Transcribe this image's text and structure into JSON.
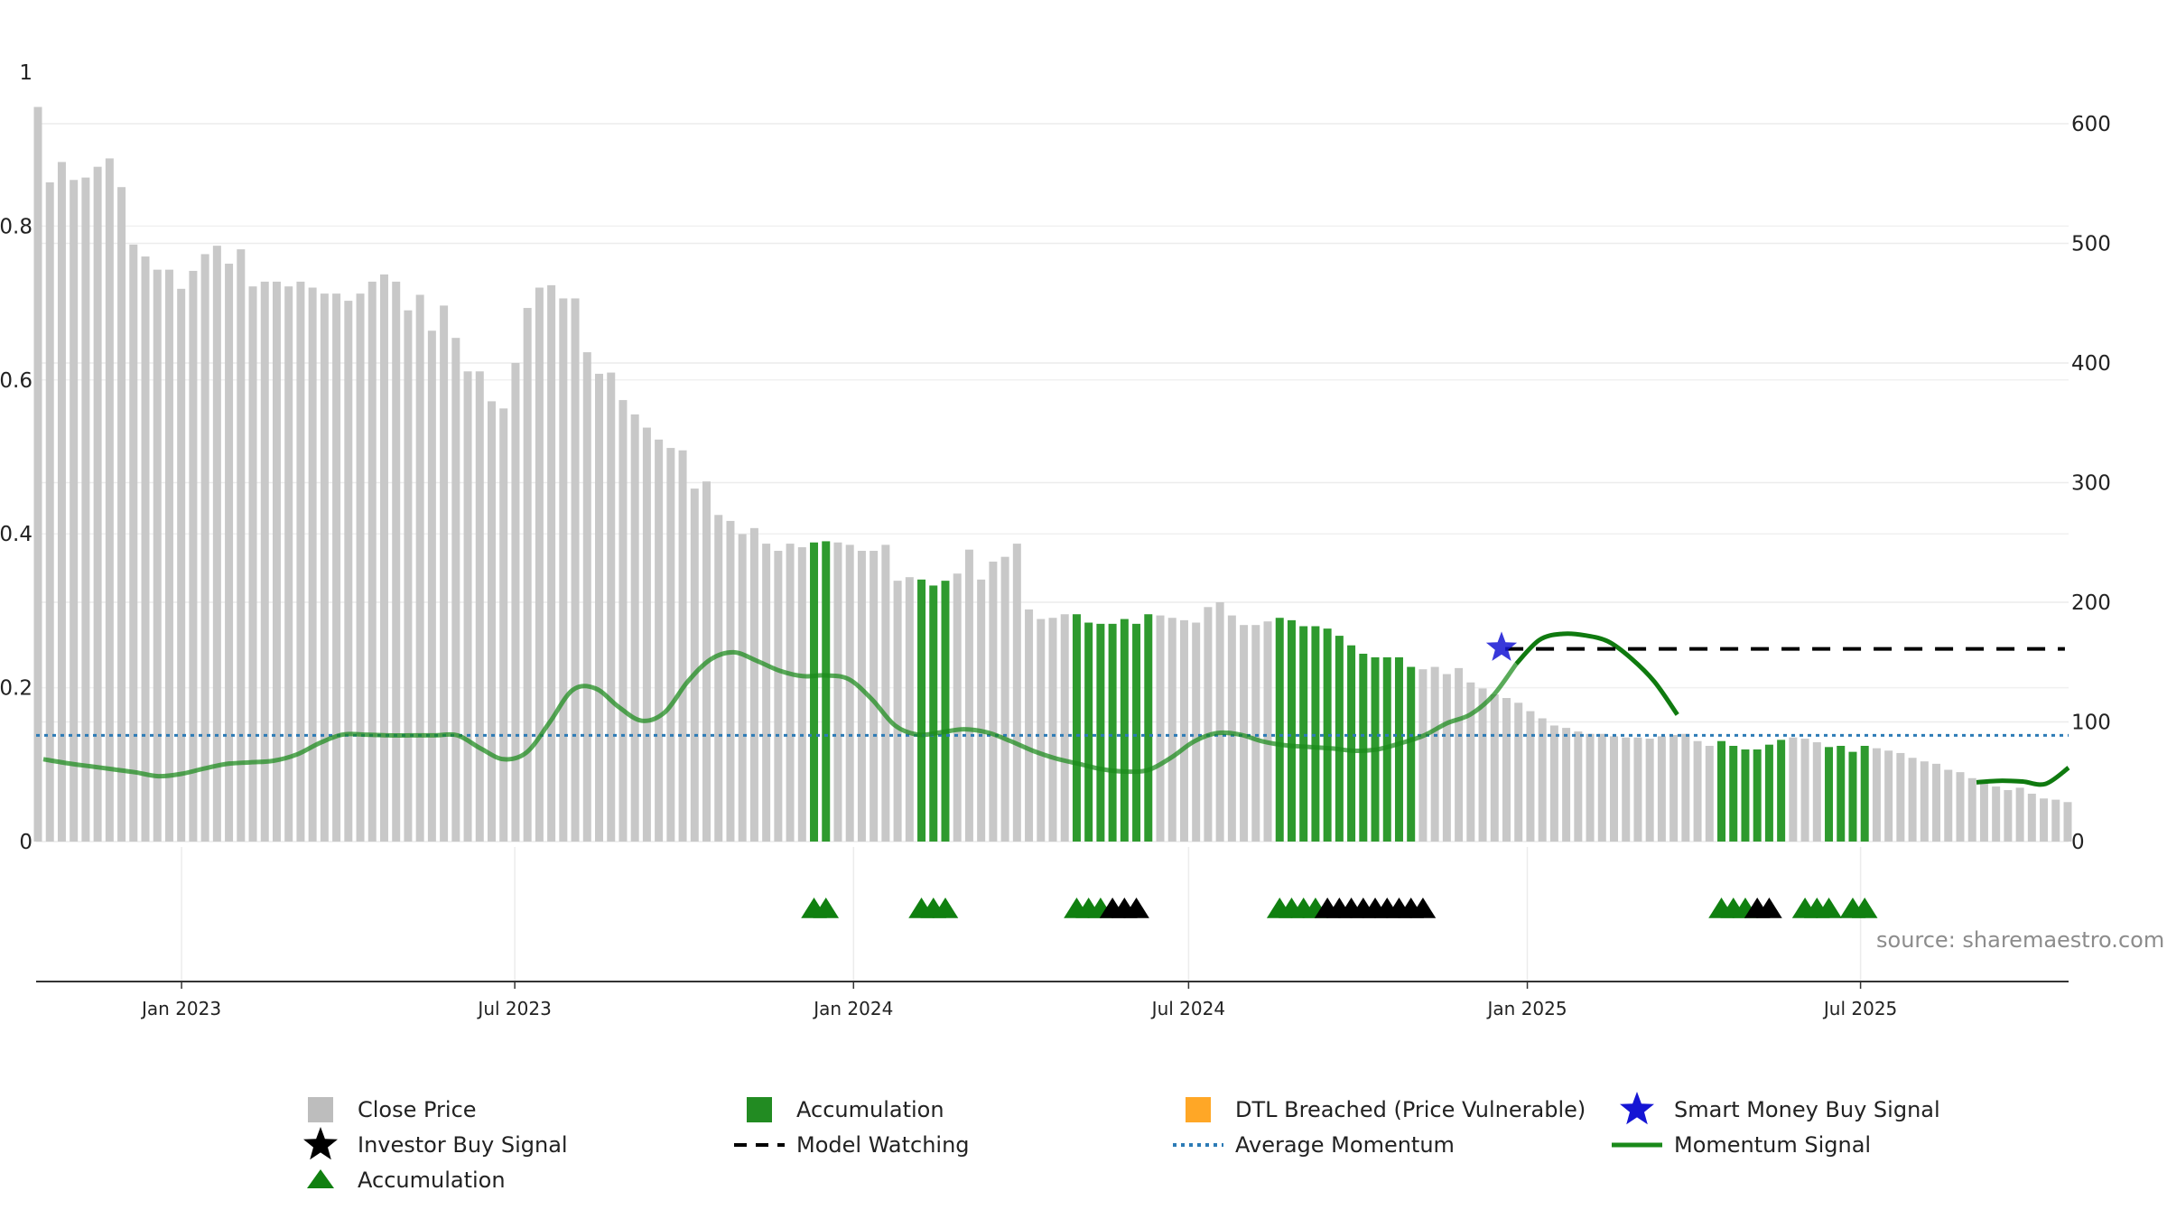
{
  "chart_data": {
    "type": "bar",
    "source": "source: sharemaestro.com",
    "left_axis": {
      "ticks": [
        "0",
        "0.2",
        "0.4",
        "0.6",
        "0.8",
        "1"
      ],
      "values": [
        0,
        0.2,
        0.4,
        0.6,
        0.8,
        1.0
      ],
      "range": [
        0,
        1
      ]
    },
    "right_axis": {
      "ticks": [
        "0",
        "100",
        "200",
        "300",
        "400",
        "500",
        "600"
      ],
      "values": [
        0,
        100,
        200,
        300,
        400,
        500,
        600
      ],
      "range": [
        0,
        600
      ]
    },
    "x_ticks": [
      {
        "label": "Jan 2023",
        "date": "2023-01-01"
      },
      {
        "label": "Jul 2023",
        "date": "2023-07-01"
      },
      {
        "label": "Jan 2024",
        "date": "2024-01-01"
      },
      {
        "label": "Jul 2024",
        "date": "2024-07-01"
      },
      {
        "label": "Jan 2025",
        "date": "2025-01-01"
      },
      {
        "label": "Jul 2025",
        "date": "2025-07-01"
      }
    ],
    "grid": true,
    "close_price": [
      614,
      551,
      568,
      553,
      555,
      564,
      571,
      547,
      499,
      489,
      478,
      478,
      462,
      477,
      491,
      498,
      483,
      495,
      464,
      468,
      468,
      464,
      468,
      463,
      458,
      458,
      452,
      458,
      468,
      474,
      468,
      444,
      457,
      427,
      448,
      421,
      393,
      393,
      368,
      362,
      400,
      446,
      463,
      465,
      454,
      454,
      409,
      391,
      392,
      369,
      357,
      346,
      336,
      329,
      327,
      295,
      301,
      273,
      268,
      257,
      262,
      249,
      243,
      249,
      246,
      250,
      251,
      250,
      248,
      243,
      243,
      248,
      218,
      221,
      219,
      214,
      218,
      224,
      244,
      219,
      234,
      238,
      249,
      194,
      186,
      187,
      190,
      190,
      183,
      182,
      182,
      186,
      182,
      190,
      189,
      187,
      185,
      183,
      196,
      200,
      189,
      181,
      181,
      184,
      187,
      185,
      180,
      180,
      178,
      172,
      164,
      157,
      154,
      154,
      154,
      146,
      144,
      146,
      140,
      145,
      133,
      128,
      123,
      120,
      116,
      109,
      103,
      97,
      95,
      92,
      90,
      90,
      88,
      87,
      87,
      86,
      88,
      89,
      90,
      84,
      80,
      84,
      80,
      77,
      77,
      81,
      85,
      87,
      86,
      83,
      79,
      80,
      75,
      80,
      78,
      76,
      74,
      70,
      67,
      65,
      60,
      58,
      53,
      49,
      46,
      43,
      45,
      40,
      36,
      35,
      33
    ],
    "accumulation_bars": [
      [
        65,
        66
      ],
      [
        74,
        76
      ],
      [
        87,
        93
      ],
      [
        104,
        115
      ],
      [
        141,
        146
      ],
      [
        150,
        153
      ]
    ],
    "accumulation_markers": [
      [
        65,
        66
      ],
      [
        74,
        76
      ],
      [
        87,
        89
      ],
      [
        104,
        107
      ],
      [
        141,
        143
      ],
      [
        148,
        150
      ],
      [
        152,
        153
      ]
    ],
    "investor_buy_markers": [
      [
        90,
        92
      ],
      [
        108,
        116
      ],
      [
        144,
        145
      ]
    ],
    "smart_money_buy": {
      "date": "2024-12-18",
      "value": 162
    },
    "model_watching": {
      "start": "2024-12-20",
      "end": "2025-10-20",
      "value": 161
    },
    "average_momentum": 0.138,
    "momentum_signal": [
      0.107,
      0.102,
      0.098,
      0.094,
      0.09,
      0.085,
      0.088,
      0.095,
      0.101,
      0.103,
      0.105,
      0.113,
      0.128,
      0.139,
      0.139,
      0.138,
      0.138,
      0.138,
      0.138,
      0.121,
      0.107,
      0.116,
      0.155,
      0.197,
      0.199,
      0.175,
      0.157,
      0.168,
      0.208,
      0.237,
      0.246,
      0.235,
      0.222,
      0.215,
      0.216,
      0.211,
      0.185,
      0.151,
      0.139,
      0.142,
      0.146,
      0.142,
      0.131,
      0.118,
      0.108,
      0.101,
      0.094,
      0.091,
      0.093,
      0.109,
      0.13,
      0.141,
      0.139,
      0.13,
      0.125,
      0.123,
      0.121,
      0.118,
      0.12,
      0.128,
      0.138,
      0.154,
      0.165,
      0.19,
      0.231,
      0.262,
      0.27,
      0.268,
      0.26,
      0.238,
      0.208,
      0.165,
      0.118,
      0.09,
      0.081,
      0.073,
      0.066,
      0.059,
      0.054,
      0.05,
      0.046,
      0.045,
      0.046,
      0.05,
      0.077,
      0.079,
      0.078,
      0.075,
      0.096
    ]
  },
  "legend": [
    {
      "key": "close",
      "label": "Close Price",
      "symbol": "square",
      "color": "#bdbdbd"
    },
    {
      "key": "accum",
      "label": "Accumulation",
      "symbol": "square",
      "color": "#228b22"
    },
    {
      "key": "dtl",
      "label": "DTL Breached (Price Vulnerable)",
      "symbol": "square",
      "color": "#ffa726"
    },
    {
      "key": "smb",
      "label": "Smart Money Buy Signal",
      "symbol": "star",
      "color": "#1515d4"
    },
    {
      "key": "ibs",
      "label": "Investor Buy Signal",
      "symbol": "star",
      "color": "#000000"
    },
    {
      "key": "watch",
      "label": "Model Watching",
      "symbol": "dash",
      "color": "#000000"
    },
    {
      "key": "avgmom",
      "label": "Average Momentum",
      "symbol": "dotted",
      "color": "#2c7bb6"
    },
    {
      "key": "momsig",
      "label": "Momentum Signal",
      "symbol": "line",
      "color": "#1a8a1a"
    },
    {
      "key": "accmark",
      "label": "Accumulation",
      "symbol": "triangle",
      "color": "#108010"
    }
  ]
}
